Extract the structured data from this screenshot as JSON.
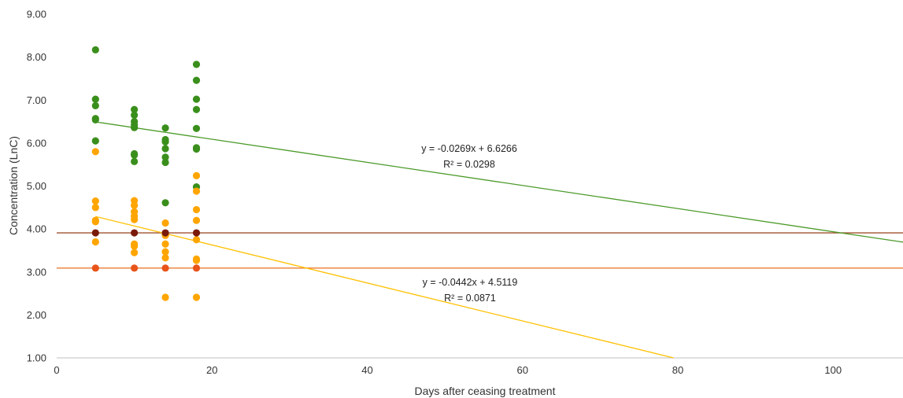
{
  "chart_data": {
    "type": "scatter",
    "xlabel": "Days after ceasing treatment",
    "ylabel": "Concentration (LnC)",
    "xlim": [
      0,
      109
    ],
    "ylim": [
      1.0,
      9.0
    ],
    "x_ticks": [
      "0",
      "20",
      "40",
      "60",
      "80",
      "100"
    ],
    "y_ticks": [
      "1.00",
      "2.00",
      "3.00",
      "4.00",
      "5.00",
      "6.00",
      "7.00",
      "8.00",
      "9.00"
    ],
    "grid": false,
    "legend": "none",
    "series": [
      {
        "color": "#3a8f1c",
        "points": [
          [
            5,
            8.17
          ],
          [
            5,
            7.02
          ],
          [
            5,
            6.87
          ],
          [
            5,
            6.57
          ],
          [
            5,
            6.54
          ],
          [
            5,
            6.05
          ],
          [
            10,
            6.78
          ],
          [
            10,
            6.65
          ],
          [
            10,
            6.5
          ],
          [
            10,
            6.42
          ],
          [
            10,
            6.36
          ],
          [
            10,
            5.75
          ],
          [
            10,
            5.72
          ],
          [
            10,
            5.57
          ],
          [
            14,
            6.35
          ],
          [
            14,
            6.08
          ],
          [
            14,
            6.03
          ],
          [
            14,
            5.87
          ],
          [
            14,
            5.67
          ],
          [
            14,
            5.55
          ],
          [
            14,
            4.61
          ],
          [
            18,
            7.83
          ],
          [
            18,
            7.46
          ],
          [
            18,
            7.02
          ],
          [
            18,
            6.78
          ],
          [
            18,
            6.34
          ],
          [
            18,
            5.89
          ],
          [
            18,
            5.86
          ],
          [
            18,
            4.98
          ]
        ]
      },
      {
        "color": "#ffa500",
        "points": [
          [
            5,
            5.8
          ],
          [
            5,
            4.65
          ],
          [
            5,
            4.5
          ],
          [
            5,
            4.2
          ],
          [
            5,
            4.17
          ],
          [
            5,
            3.7
          ],
          [
            10,
            4.66
          ],
          [
            10,
            4.55
          ],
          [
            10,
            4.4
          ],
          [
            10,
            4.3
          ],
          [
            10,
            4.22
          ],
          [
            10,
            3.65
          ],
          [
            10,
            3.6
          ],
          [
            10,
            3.45
          ],
          [
            14,
            4.14
          ],
          [
            14,
            3.9
          ],
          [
            14,
            3.85
          ],
          [
            14,
            3.65
          ],
          [
            14,
            3.47
          ],
          [
            14,
            3.33
          ],
          [
            14,
            2.41
          ],
          [
            18,
            5.24
          ],
          [
            18,
            4.88
          ],
          [
            18,
            4.45
          ],
          [
            18,
            4.2
          ],
          [
            18,
            3.75
          ],
          [
            18,
            3.3
          ],
          [
            18,
            3.27
          ],
          [
            18,
            2.41
          ]
        ]
      },
      {
        "color": "#7a1a0a",
        "points": [
          [
            5,
            3.91
          ],
          [
            10,
            3.91
          ],
          [
            14,
            3.91
          ],
          [
            18,
            3.91
          ]
        ]
      },
      {
        "color": "#e8541a",
        "points": [
          [
            5,
            3.09
          ],
          [
            10,
            3.09
          ],
          [
            14,
            3.09
          ],
          [
            18,
            3.09
          ]
        ]
      }
    ],
    "trendlines": [
      {
        "color": "#4c9a2a",
        "slope": -0.0269,
        "intercept": 6.6266,
        "x_start": 5,
        "x_end": 109,
        "equation": "y = -0.0269x + 6.6266",
        "r2": "R² = 0.0298"
      },
      {
        "color": "#ffc000",
        "slope": -0.0442,
        "intercept": 4.5119,
        "x_start": 5,
        "x_end": 79.45,
        "equation": "y = -0.0442x + 4.5119",
        "r2": "R² = 0.0871"
      }
    ],
    "reference_lines": [
      {
        "color": "#a0522d",
        "y": 3.91
      },
      {
        "color": "#ed7d31",
        "y": 3.09
      }
    ]
  }
}
